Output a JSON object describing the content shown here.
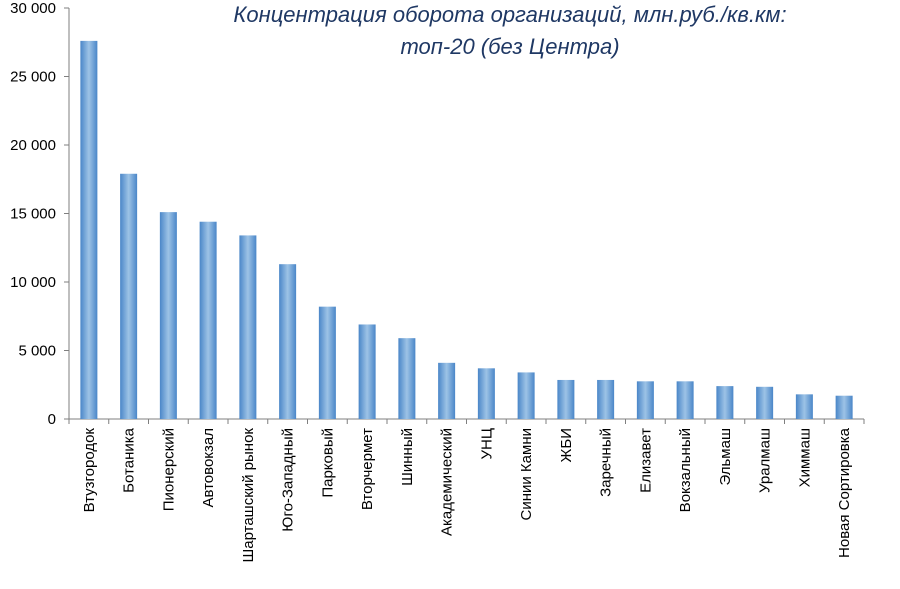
{
  "chart_data": {
    "type": "bar",
    "title": "Концентрация оборота организаций, млн.руб./кв.км:",
    "subtitle": "топ-20 (без Центра)",
    "xlabel": "",
    "ylabel": "",
    "ylim": [
      0,
      30000
    ],
    "y_ticks": [
      0,
      5000,
      10000,
      15000,
      20000,
      25000,
      30000
    ],
    "y_tick_labels": [
      "0",
      "5 000",
      "10 000",
      "15 000",
      "20 000",
      "25 000",
      "30 000"
    ],
    "grid": false,
    "legend": "none",
    "categories": [
      "Втузгородок",
      "Ботаника",
      "Пионерский",
      "Автовокзал",
      "Шарташский рынок",
      "Юго-Западный",
      "Парковый",
      "Вторчермет",
      "Шинный",
      "Академический",
      "УНЦ",
      "Синии Камни",
      "ЖБИ",
      "Заречный",
      "Елизавет",
      "Вокзальный",
      "Эльмаш",
      "Уралмаш",
      "Химмаш",
      "Новая Сортировка"
    ],
    "values": [
      27600,
      17900,
      15100,
      14400,
      13400,
      11300,
      8200,
      6900,
      5900,
      4100,
      3700,
      3400,
      2850,
      2850,
      2750,
      2750,
      2400,
      2350,
      1800,
      1700
    ],
    "colors": {
      "bar_light": "#9dc3e6",
      "bar_dark": "#4a86c8",
      "axis": "#7f7f7f",
      "title": "#1f3864"
    }
  }
}
